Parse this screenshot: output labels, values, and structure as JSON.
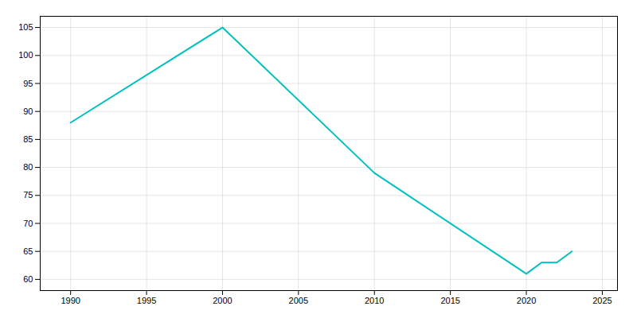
{
  "chart_data": {
    "type": "line",
    "x": [
      1990,
      2000,
      2010,
      2020,
      2021,
      2022,
      2023
    ],
    "values": [
      88,
      105,
      79,
      61,
      63,
      63,
      65
    ],
    "color": "#00C0C0",
    "xlim": [
      1988,
      2026
    ],
    "ylim": [
      58,
      107
    ],
    "xticks": [
      1990,
      1995,
      2000,
      2005,
      2010,
      2015,
      2020,
      2025
    ],
    "yticks": [
      60,
      65,
      70,
      75,
      80,
      85,
      90,
      95,
      100,
      105
    ],
    "grid": true
  }
}
